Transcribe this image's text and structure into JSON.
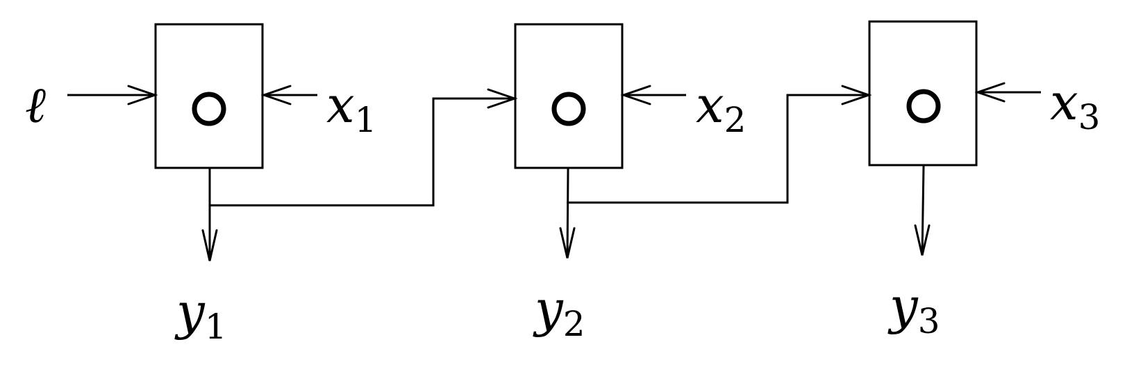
{
  "inputs": {
    "ell": {
      "symbol": "ℓ"
    },
    "x1": {
      "symbol": "x",
      "subscript": "1"
    },
    "x2": {
      "symbol": "x",
      "subscript": "2"
    },
    "x3": {
      "symbol": "x",
      "subscript": "3"
    }
  },
  "outputs": {
    "y1": {
      "symbol": "y",
      "subscript": "1"
    },
    "y2": {
      "symbol": "y",
      "subscript": "2"
    },
    "y3": {
      "symbol": "y",
      "subscript": "3"
    }
  },
  "blocks": [
    {
      "operator": "composition-circle"
    },
    {
      "operator": "composition-circle"
    },
    {
      "operator": "composition-circle"
    }
  ],
  "icons": {
    "operator": "circle-ring-icon",
    "arrow": "open-arrowhead-icon"
  },
  "colors": {
    "stroke": "#000000",
    "background": "#ffffff"
  }
}
